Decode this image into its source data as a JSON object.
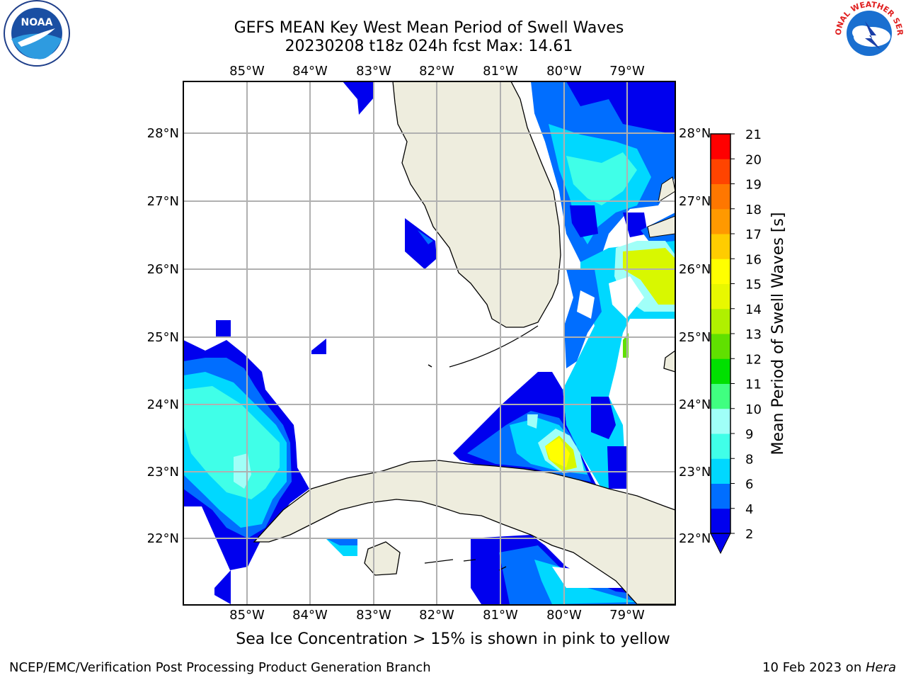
{
  "title_line1": "GEFS MEAN Key West Mean Period of Swell Waves",
  "title_line2": "20230208 t18z 024h fcst   Max: 14.61",
  "logos": {
    "left": "NOAA",
    "right": "NATIONAL WEATHER SERVICE"
  },
  "lon_labels": [
    "85°W",
    "84°W",
    "83°W",
    "82°W",
    "81°W",
    "80°W",
    "79°W"
  ],
  "lat_labels": [
    "28°N",
    "27°N",
    "26°N",
    "25°N",
    "24°N",
    "23°N",
    "22°N"
  ],
  "colorbar": {
    "label": "Mean Period of Swell Waves [s]",
    "ticks": [
      "21",
      "20",
      "19",
      "18",
      "17",
      "16",
      "15",
      "14",
      "13",
      "12",
      "11",
      "10",
      "9",
      "8",
      "6",
      "4",
      "2"
    ],
    "colors": [
      "#0000ee",
      "#006eff",
      "#00d8ff",
      "#40ffe8",
      "#a0fff8",
      "#40ff80",
      "#00e000",
      "#60e000",
      "#b0f000",
      "#e8f800",
      "#ffff00",
      "#ffcc00",
      "#ff9900",
      "#ff7700",
      "#ff4400",
      "#ff0000"
    ]
  },
  "note": "Sea Ice Concentration > 15% is shown in pink to yellow",
  "footer_left": "NCEP/EMC/Verification Post Processing Product Generation Branch",
  "footer_date": "10 Feb 2023 on ",
  "footer_host": "Hera"
}
